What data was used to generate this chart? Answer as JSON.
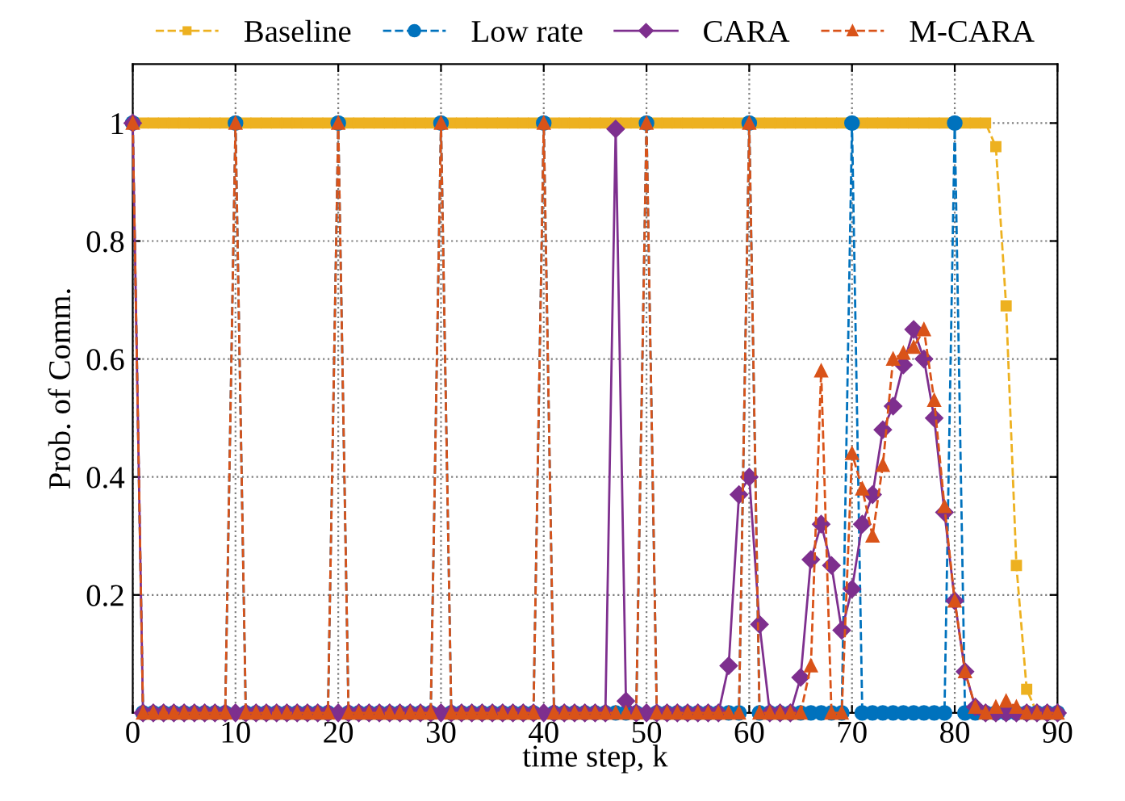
{
  "chart_data": {
    "type": "line",
    "xlabel": "time step, k",
    "ylabel": "Prob. of Comm.",
    "x": [
      0,
      1,
      2,
      3,
      4,
      5,
      6,
      7,
      8,
      9,
      10,
      11,
      12,
      13,
      14,
      15,
      16,
      17,
      18,
      19,
      20,
      21,
      22,
      23,
      24,
      25,
      26,
      27,
      28,
      29,
      30,
      31,
      32,
      33,
      34,
      35,
      36,
      37,
      38,
      39,
      40,
      41,
      42,
      43,
      44,
      45,
      46,
      47,
      48,
      49,
      50,
      51,
      52,
      53,
      54,
      55,
      56,
      57,
      58,
      59,
      60,
      61,
      62,
      63,
      64,
      65,
      66,
      67,
      68,
      69,
      70,
      71,
      72,
      73,
      74,
      75,
      76,
      77,
      78,
      79,
      80,
      81,
      82,
      83,
      84,
      85,
      86,
      87,
      88,
      89,
      90
    ],
    "series": [
      {
        "name": "Baseline",
        "color": "#edb120",
        "marker": "square",
        "line_style": "dashed",
        "values": [
          1,
          1,
          1,
          1,
          1,
          1,
          1,
          1,
          1,
          1,
          1,
          1,
          1,
          1,
          1,
          1,
          1,
          1,
          1,
          1,
          1,
          1,
          1,
          1,
          1,
          1,
          1,
          1,
          1,
          1,
          1,
          1,
          1,
          1,
          1,
          1,
          1,
          1,
          1,
          1,
          1,
          1,
          1,
          1,
          1,
          1,
          1,
          1,
          1,
          1,
          1,
          1,
          1,
          1,
          1,
          1,
          1,
          1,
          1,
          1,
          1,
          1,
          1,
          1,
          1,
          1,
          1,
          1,
          1,
          1,
          1,
          1,
          1,
          1,
          1,
          1,
          1,
          1,
          1,
          1,
          1,
          1,
          1,
          1,
          0.96,
          0.69,
          0.25,
          0.04,
          0,
          0,
          0
        ]
      },
      {
        "name": "Low rate",
        "color": "#0072bd",
        "marker": "circle",
        "line_style": "dashed",
        "values": [
          1,
          0,
          0,
          0,
          0,
          0,
          0,
          0,
          0,
          0,
          1,
          0,
          0,
          0,
          0,
          0,
          0,
          0,
          0,
          0,
          1,
          0,
          0,
          0,
          0,
          0,
          0,
          0,
          0,
          0,
          1,
          0,
          0,
          0,
          0,
          0,
          0,
          0,
          0,
          0,
          1,
          0,
          0,
          0,
          0,
          0,
          0,
          0,
          0,
          0,
          1,
          0,
          0,
          0,
          0,
          0,
          0,
          0,
          0,
          0,
          1,
          0,
          0,
          0,
          0,
          0,
          0,
          0,
          0,
          0,
          1,
          0,
          0,
          0,
          0,
          0,
          0,
          0,
          0,
          0,
          1,
          0,
          0,
          0,
          0,
          0,
          0,
          0,
          0,
          0,
          0
        ]
      },
      {
        "name": "CARA",
        "color": "#7e2f8e",
        "marker": "diamond",
        "line_style": "solid",
        "values": [
          1,
          0,
          0,
          0,
          0,
          0,
          0,
          0,
          0,
          0,
          0,
          0,
          0,
          0,
          0,
          0,
          0,
          0,
          0,
          0,
          0,
          0,
          0,
          0,
          0,
          0,
          0,
          0,
          0,
          0,
          0,
          0,
          0,
          0,
          0,
          0,
          0,
          0,
          0,
          0,
          0,
          0,
          0,
          0,
          0,
          0,
          0,
          0.99,
          0.02,
          0,
          0,
          0,
          0,
          0,
          0,
          0,
          0,
          0,
          0.08,
          0.37,
          0.4,
          0.15,
          0,
          0,
          0,
          0.06,
          0.26,
          0.32,
          0.25,
          0.14,
          0.21,
          0.32,
          0.37,
          0.48,
          0.52,
          0.59,
          0.65,
          0.6,
          0.5,
          0.34,
          0.19,
          0.07,
          0.01,
          0,
          0,
          0,
          0,
          0,
          0,
          0,
          0
        ]
      },
      {
        "name": "M-CARA",
        "color": "#d95319",
        "marker": "triangle",
        "line_style": "dashed",
        "values": [
          1,
          0,
          0,
          0,
          0,
          0,
          0,
          0,
          0,
          0,
          1,
          0,
          0,
          0,
          0,
          0,
          0,
          0,
          0,
          0,
          1,
          0,
          0,
          0,
          0,
          0,
          0,
          0,
          0,
          0,
          1,
          0,
          0,
          0,
          0,
          0,
          0,
          0,
          0,
          0,
          1,
          0,
          0,
          0,
          0,
          0,
          0,
          0,
          0,
          0,
          1,
          0,
          0,
          0,
          0,
          0,
          0,
          0,
          0,
          0,
          1,
          0,
          0,
          0,
          0,
          0,
          0.08,
          0.58,
          0,
          0,
          0.44,
          0.38,
          0.3,
          0.42,
          0.6,
          0.61,
          0.62,
          0.65,
          0.53,
          0.35,
          0.19,
          0.07,
          0.01,
          0,
          0.01,
          0.02,
          0.01,
          0,
          0,
          0,
          0
        ]
      }
    ],
    "xlim": [
      0,
      90
    ],
    "xticks": [
      0,
      10,
      20,
      30,
      40,
      50,
      60,
      70,
      80,
      90
    ],
    "ylim": [
      0,
      1.1
    ],
    "yticks": [
      0.2,
      0.4,
      0.6,
      0.8,
      1
    ],
    "grid": true,
    "legend": "top"
  }
}
